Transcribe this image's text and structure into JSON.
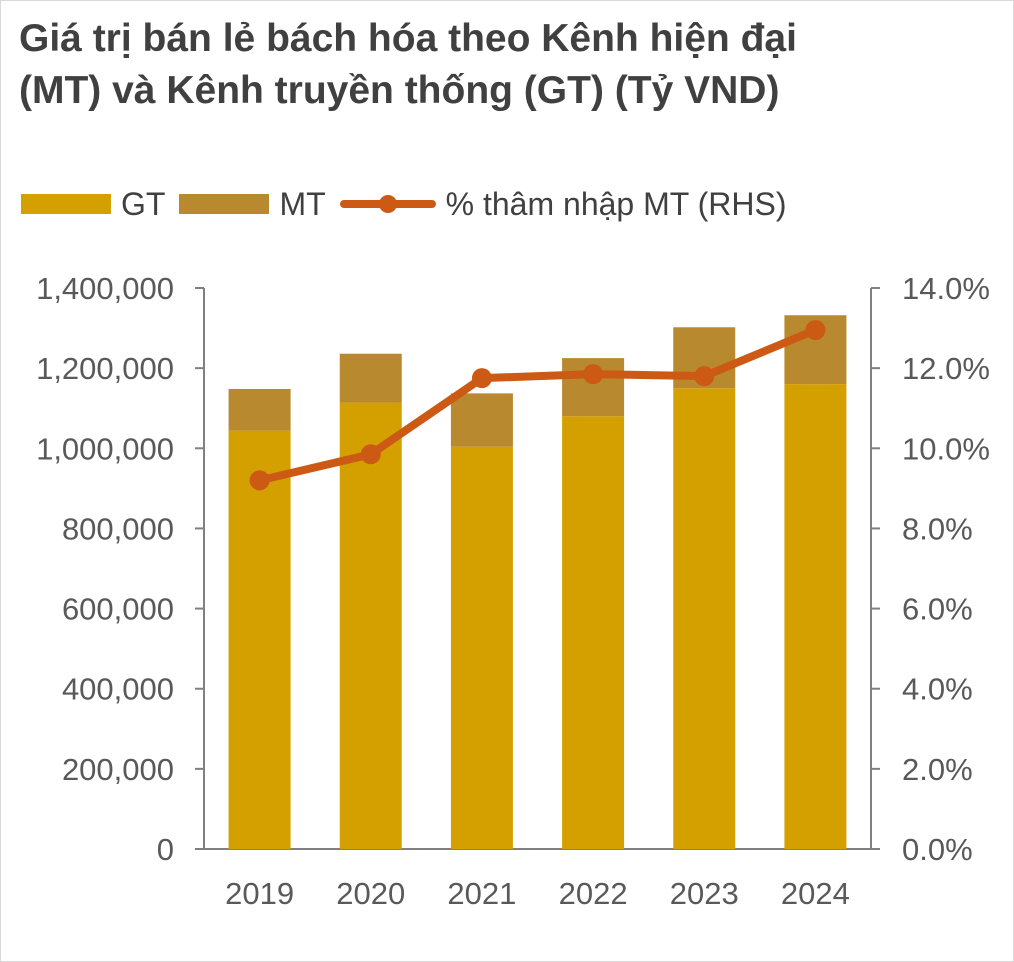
{
  "chart_data": {
    "type": "bar",
    "stacked": true,
    "title": "Giá trị bán lẻ bách hóa theo Kênh hiện đại (MT) và Kênh truyền thống (GT) (Tỷ VND)",
    "categories": [
      "2019",
      "2020",
      "2021",
      "2022",
      "2023",
      "2024"
    ],
    "series": [
      {
        "name": "GT",
        "type": "bar",
        "axis": "left",
        "color": "#D4A000",
        "values": [
          1044000,
          1114000,
          1004000,
          1080000,
          1150000,
          1160000
        ]
      },
      {
        "name": "MT",
        "type": "bar",
        "axis": "left",
        "color": "#B8892E",
        "values": [
          104000,
          122000,
          133000,
          145000,
          152000,
          172000
        ]
      },
      {
        "name": "% thâm nhập MT (RHS)",
        "type": "line",
        "axis": "right",
        "color": "#CC5A14",
        "values": [
          9.2,
          9.85,
          11.75,
          11.85,
          11.8,
          12.95
        ]
      }
    ],
    "left_axis": {
      "min": 0,
      "max": 1400000,
      "ticks": [
        "0",
        "200,000",
        "400,000",
        "600,000",
        "800,000",
        "1,000,000",
        "1,200,000",
        "1,400,000"
      ]
    },
    "right_axis": {
      "min": 0,
      "max": 14,
      "ticks": [
        "0.0%",
        "2.0%",
        "4.0%",
        "6.0%",
        "8.0%",
        "10.0%",
        "12.0%",
        "14.0%"
      ]
    },
    "legend_position": "top-left",
    "grid": false
  }
}
